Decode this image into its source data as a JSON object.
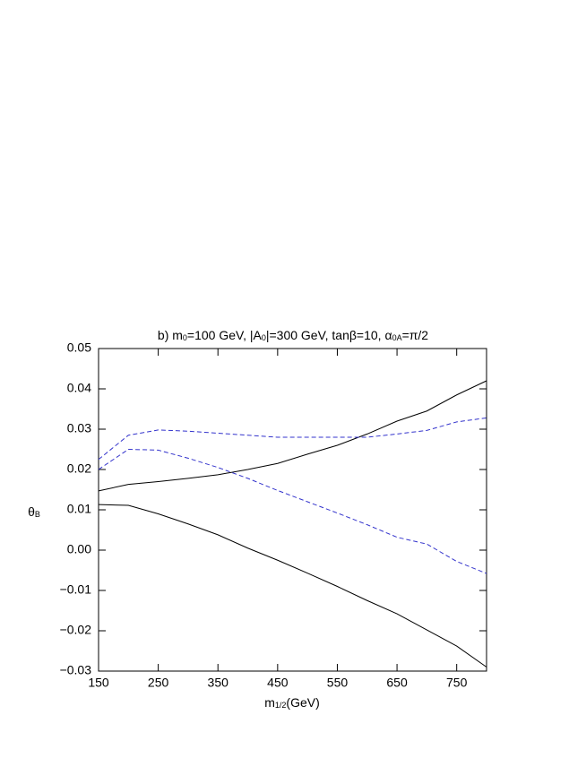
{
  "chart_data": {
    "type": "line",
    "title": [
      {
        "text": "b) m"
      },
      {
        "sub": "0"
      },
      {
        "text": "=100 GeV, |A"
      },
      {
        "sub": "0"
      },
      {
        "text": "|=300 GeV,  tanβ=10, α"
      },
      {
        "sub": "0A"
      },
      {
        "text": "=π/2"
      }
    ],
    "xlabel": [
      {
        "text": "m"
      },
      {
        "sub": "1/2"
      },
      {
        "text": "(GeV)"
      }
    ],
    "ylabel": [
      {
        "text": "θ"
      },
      {
        "sub": "B"
      }
    ],
    "x": [
      150,
      200,
      250,
      300,
      350,
      400,
      450,
      500,
      550,
      600,
      650,
      700,
      750,
      800
    ],
    "series": [
      {
        "color": "#000000",
        "dashed": false,
        "values": [
          0.0147,
          0.0163,
          0.017,
          0.0178,
          0.0187,
          0.02,
          0.0215,
          0.0238,
          0.026,
          0.0288,
          0.032,
          0.0345,
          0.0385,
          0.042
        ]
      },
      {
        "color": "#000000",
        "dashed": false,
        "values": [
          0.0113,
          0.0111,
          0.009,
          0.0065,
          0.0038,
          0.0005,
          -0.0025,
          -0.0057,
          -0.009,
          -0.0125,
          -0.0158,
          -0.0198,
          -0.0238,
          -0.029
        ]
      },
      {
        "color": "#3333cc",
        "dashed": true,
        "values": [
          0.0225,
          0.0285,
          0.0298,
          0.0295,
          0.029,
          0.0285,
          0.028,
          0.028,
          0.028,
          0.028,
          0.0288,
          0.0297,
          0.0318,
          0.0328
        ]
      },
      {
        "color": "#3333cc",
        "dashed": true,
        "values": [
          0.02,
          0.025,
          0.0248,
          0.0228,
          0.0205,
          0.0178,
          0.0148,
          0.012,
          0.0092,
          0.0063,
          0.0032,
          0.0015,
          -0.0028,
          -0.0058
        ]
      }
    ],
    "xlim": [
      150,
      800
    ],
    "xticks": [
      150,
      250,
      350,
      450,
      550,
      650,
      750
    ],
    "ylim": [
      -0.03,
      0.05
    ],
    "yticks": [
      {
        "value": -0.03,
        "label": "−0.03"
      },
      {
        "value": -0.02,
        "label": "−0.02"
      },
      {
        "value": -0.01,
        "label": "−0.01"
      },
      {
        "value": 0,
        "label": "0.00"
      },
      0.01,
      0.02,
      0.03,
      0.04,
      0.05
    ]
  }
}
